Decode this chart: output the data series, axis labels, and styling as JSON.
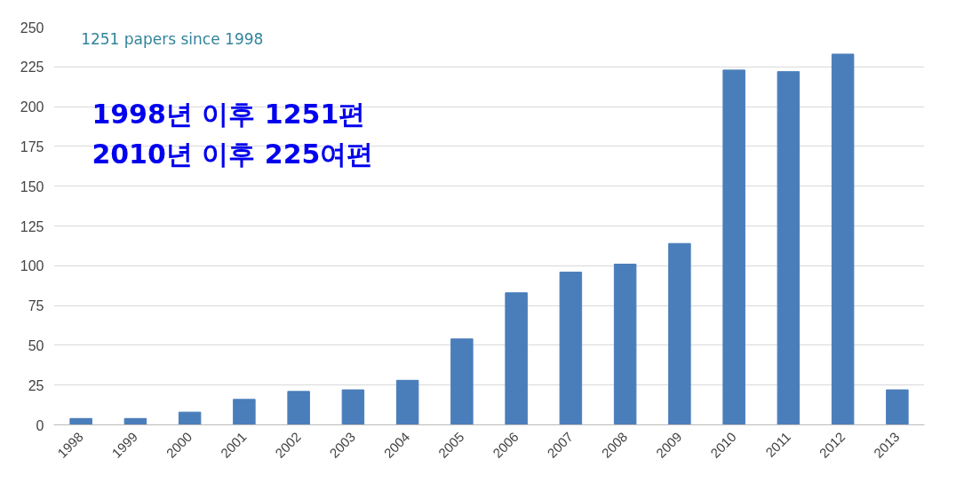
{
  "chart_data": {
    "type": "bar",
    "categories": [
      "1998",
      "1999",
      "2000",
      "2001",
      "2002",
      "2003",
      "2004",
      "2005",
      "2006",
      "2007",
      "2008",
      "2009",
      "2010",
      "2011",
      "2012",
      "2013"
    ],
    "values": [
      4,
      4,
      8,
      16,
      21,
      22,
      28,
      54,
      83,
      96,
      101,
      114,
      223,
      222,
      233,
      22
    ],
    "color": "#4a7ebb",
    "ylim": [
      0,
      250
    ],
    "yticks": [
      0,
      25,
      50,
      75,
      100,
      125,
      150,
      175,
      200,
      225,
      250
    ],
    "grid": "y",
    "annotations": [
      "1251 papers since 1998",
      "1998년 이후 1251편",
      "2010년 이후 225여편"
    ]
  }
}
